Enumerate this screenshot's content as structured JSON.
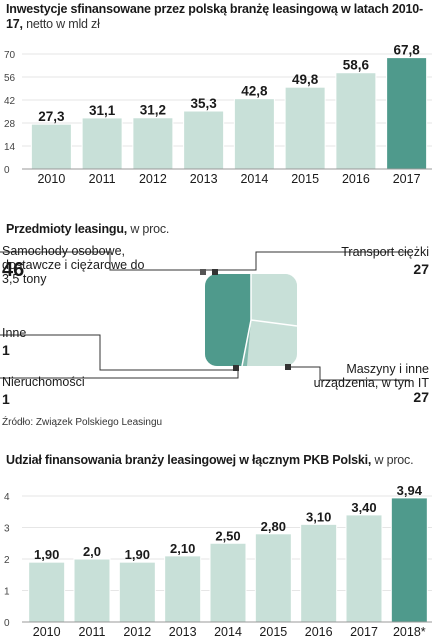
{
  "chart1": {
    "title": "Inwestycje sfinansowane przez polską branżę leasingową w latach 2010-17,",
    "subtitle": "netto w mld zł"
  },
  "pie": {
    "title": "Przedmioty leasingu,",
    "subtitle": "w proc.",
    "segments": [
      {
        "label": "Samochody osobowe, dostawcze i ciężarowe do 3,5 tony",
        "value": "46"
      },
      {
        "label": "Transport ciężki",
        "value": "27"
      },
      {
        "label": "Maszyny i inne urządzenia, w tym IT",
        "value": "27"
      },
      {
        "label": "Inne",
        "value": "1"
      },
      {
        "label": "Nieruchomości",
        "value": "1"
      }
    ]
  },
  "source": "Źródło: Związek Polskiego Leasingu",
  "chart2": {
    "title": "Udział finansowania branży leasingowej w łącznym PKB Polski,",
    "subtitle": "w proc."
  },
  "colors": {
    "bar": "#c8e0d8",
    "bar_highlight": "#4f9a8c",
    "pie_main": "#4f9a8c",
    "pie_light": "#c8e0d8",
    "grid": "#e6e6e6"
  },
  "chart_data": [
    {
      "type": "bar",
      "title": "Inwestycje sfinansowane przez polską branżę leasingową w latach 2010-17, netto w mld zł",
      "categories": [
        "2010",
        "2011",
        "2012",
        "2013",
        "2014",
        "2015",
        "2016",
        "2017"
      ],
      "values": [
        27.3,
        31.1,
        31.2,
        35.3,
        42.8,
        49.8,
        58.6,
        67.8
      ],
      "value_labels": [
        "27,3",
        "31,1",
        "31,2",
        "35,3",
        "42,8",
        "49,8",
        "58,6",
        "67,8"
      ],
      "yticks": [
        "0",
        "14",
        "28",
        "42",
        "56",
        "70"
      ],
      "ylim": [
        0,
        70
      ],
      "highlight_index": 7,
      "grid": true
    },
    {
      "type": "pie",
      "title": "Przedmioty leasingu, w proc.",
      "labels": [
        "Samochody osobowe, dostawcze i ciężarowe do 3,5 tony",
        "Transport ciężki",
        "Maszyny i inne urządzenia, w tym IT",
        "Inne",
        "Nieruchomości"
      ],
      "values": [
        46,
        27,
        27,
        1,
        1
      ]
    },
    {
      "type": "bar",
      "title": "Udział finansowania branży leasingowej w łącznym PKB Polski, w proc.",
      "categories": [
        "2010",
        "2011",
        "2012",
        "2013",
        "2014",
        "2015",
        "2016",
        "2017",
        "2018*"
      ],
      "values": [
        1.9,
        2.0,
        1.9,
        2.1,
        2.5,
        2.8,
        3.1,
        3.4,
        3.94
      ],
      "value_labels": [
        "1,90",
        "2,0",
        "1,90",
        "2,10",
        "2,50",
        "2,80",
        "3,10",
        "3,40",
        "3,94"
      ],
      "yticks": [
        "0",
        "1",
        "2",
        "3",
        "4"
      ],
      "ylim": [
        0,
        4
      ],
      "highlight_index": 8,
      "grid": true
    }
  ]
}
